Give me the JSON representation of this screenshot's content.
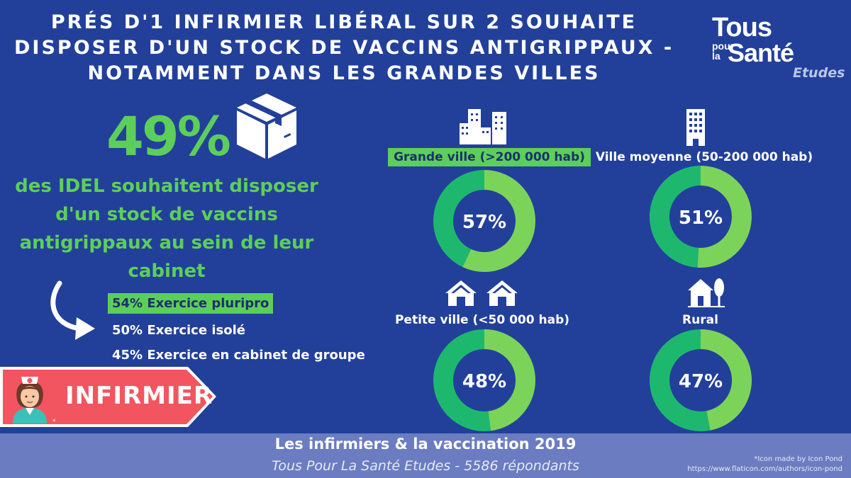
{
  "header": {
    "title_lines": [
      "PRÉS D'1 INFIRMIER LIBÉRAL SUR 2 SOUHAITE",
      "DISPOSER D'UN STOCK DE VACCINS ANTIGRIPPAUX -",
      "NOTAMMENT DANS LES GRANDES VILLES"
    ]
  },
  "logo": {
    "line1": "Tous",
    "pour": "pour",
    "la": "la",
    "sante": "Santé",
    "etudes": "Etudes"
  },
  "left": {
    "headline_pct": "49%",
    "description": "des IDEL souhaitent disposer d'un stock de vaccins antigrippaux au sein de leur cabinet",
    "desc_lines": [
      "des IDEL souhaitent disposer",
      "d'un stock de vaccins",
      "antigrippaux au sein de leur",
      "cabinet"
    ],
    "stats": [
      "54% Exercice pluripro",
      "50% Exercice isolé",
      "45% Exercice en cabinet de groupe"
    ],
    "badge_label": "INFIRMIER",
    "badge_note": "*"
  },
  "chart_data": {
    "type": "pie",
    "variant": "donut",
    "categories": [
      "Grande ville (>200 000 hab)",
      "Ville moyenne (50-200 000 hab)",
      "Petite ville (<50 000 hab)",
      "Rural"
    ],
    "values": [
      57,
      51,
      48,
      47
    ],
    "value_labels": [
      "57%",
      "51%",
      "48%",
      "47%"
    ],
    "highlighted": "Grande ville (>200 000 hab)"
  },
  "colors": {
    "background": "#22409a",
    "accent_green": "#5ccf5a",
    "donut_value": "#7cd35a",
    "donut_rest": "#1db86e",
    "footer": "#6b7cc1",
    "badge": "#f2555f"
  },
  "footer": {
    "title": "Les infirmiers & la vaccination 2019",
    "subtitle": "Tous Pour La Santé Etudes - 5586 répondants",
    "credit_line1": "*Icon made by Icon Pond",
    "credit_line2": "https://www.flaticon.com/authors/icon-pond"
  },
  "icons": [
    "buildings-icon",
    "tower-icon",
    "houses-icon",
    "rural-house-icon",
    "box-icon",
    "curved-arrow-icon",
    "nurse-icon"
  ]
}
